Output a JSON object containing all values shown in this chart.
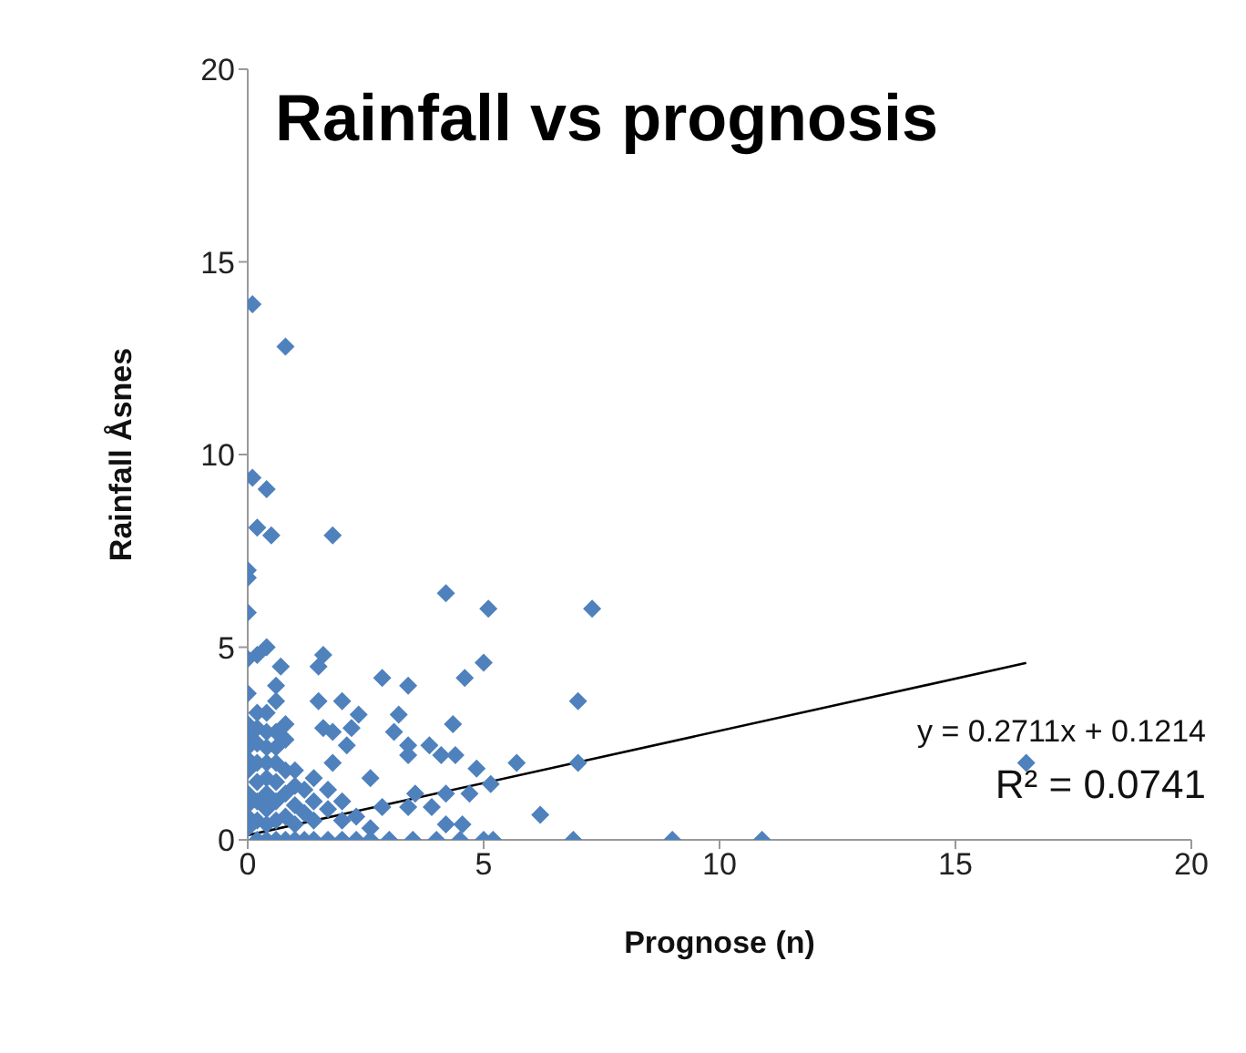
{
  "chart_data": {
    "type": "scatter",
    "title": "Rainfall vs prognosis",
    "xlabel": "Prognose (n)",
    "ylabel": "Rainfall Åsnes",
    "xlim": [
      0,
      20
    ],
    "xticks": [
      0,
      5,
      10,
      15,
      20
    ],
    "ylim": [
      0,
      20
    ],
    "yticks": [
      0,
      5,
      10,
      15,
      20
    ],
    "grid": false,
    "marker": "diamond",
    "annotations": [
      "y = 0.2711x + 0.1214",
      "R² = 0.0741"
    ],
    "series": [
      {
        "type": "scatter",
        "color": "#4f81bd",
        "x": [
          0.1,
          0.8,
          0.1,
          0.4,
          0.2,
          0.5,
          1.8,
          0,
          0,
          0,
          4.2,
          5.1,
          7.3,
          0.4,
          0.2,
          0,
          1.6,
          1.5,
          0.7,
          5.0,
          4.6,
          2.85,
          3.4,
          7.0,
          1.5,
          2.0,
          2.35,
          3.2,
          4.35,
          1.6,
          1.8,
          2.2,
          3.1,
          2.1,
          3.85,
          3.4,
          4.1,
          4.4,
          3.4,
          5.7,
          7.0,
          1.8,
          4.85,
          2.6,
          5.15,
          4.7,
          4.2,
          3.55,
          6.2,
          3.9,
          3.4,
          2.85,
          4.55,
          4.2,
          16.5,
          3.5,
          4.0,
          4.5,
          5.0,
          5.2,
          6.9,
          9.0,
          10.9,
          0,
          0,
          0,
          0,
          0,
          0,
          0,
          0,
          0,
          0,
          0.2,
          0.2,
          0.2,
          0.2,
          0.2,
          0.2,
          0.2,
          0.2,
          0.4,
          0.4,
          0.4,
          0.4,
          0.4,
          0.4,
          0.4,
          0.4,
          0.4,
          0.6,
          0.6,
          0.6,
          0.6,
          0.6,
          0.6,
          0.6,
          0.6,
          0.6,
          0.8,
          0.8,
          0.8,
          0.8,
          0.8,
          0.8,
          1.0,
          1.0,
          1.0,
          1.0,
          1.0,
          1.2,
          1.2,
          1.2,
          1.4,
          1.4,
          1.4,
          1.4,
          1.7,
          1.7,
          1.7,
          2.0,
          2.0,
          2.0,
          2.3,
          2.3,
          2.6,
          2.6,
          3.0
        ],
        "values": [
          13.9,
          12.8,
          9.4,
          9.1,
          8.1,
          7.9,
          7.9,
          7.0,
          6.8,
          5.9,
          6.4,
          6.0,
          6.0,
          5.0,
          4.8,
          4.7,
          4.8,
          4.5,
          4.5,
          4.6,
          4.2,
          4.2,
          4.0,
          3.6,
          3.6,
          3.6,
          3.25,
          3.25,
          3.0,
          2.9,
          2.8,
          2.9,
          2.8,
          2.45,
          2.45,
          2.45,
          2.2,
          2.2,
          2.2,
          2.0,
          2.0,
          2.0,
          1.85,
          1.6,
          1.45,
          1.2,
          1.2,
          1.2,
          0.65,
          0.85,
          0.85,
          0.85,
          0.4,
          0.4,
          2.0,
          0,
          0,
          0,
          0,
          0,
          0,
          0,
          0,
          0.3,
          0.6,
          0.9,
          1.2,
          1.8,
          2.1,
          2.4,
          2.7,
          3.0,
          3.8,
          0,
          0.5,
          1.0,
          1.5,
          2.0,
          2.5,
          2.9,
          3.3,
          0,
          0.4,
          0.8,
          1.2,
          1.6,
          2.0,
          2.4,
          2.8,
          3.3,
          0,
          0.5,
          1.0,
          1.5,
          2.0,
          2.4,
          2.8,
          3.6,
          4.0,
          0,
          0.6,
          1.2,
          1.8,
          2.6,
          3.0,
          0,
          0.4,
          0.9,
          1.4,
          1.8,
          0,
          0.7,
          1.3,
          0,
          0.5,
          1.0,
          1.6,
          0,
          0.8,
          1.3,
          0,
          0.5,
          1.0,
          0,
          0.6,
          0,
          0.3,
          0
        ]
      },
      {
        "type": "line",
        "color": "#000000",
        "marker": "none",
        "x": [
          0,
          16.5
        ],
        "values": [
          0.12,
          4.59
        ]
      }
    ]
  }
}
